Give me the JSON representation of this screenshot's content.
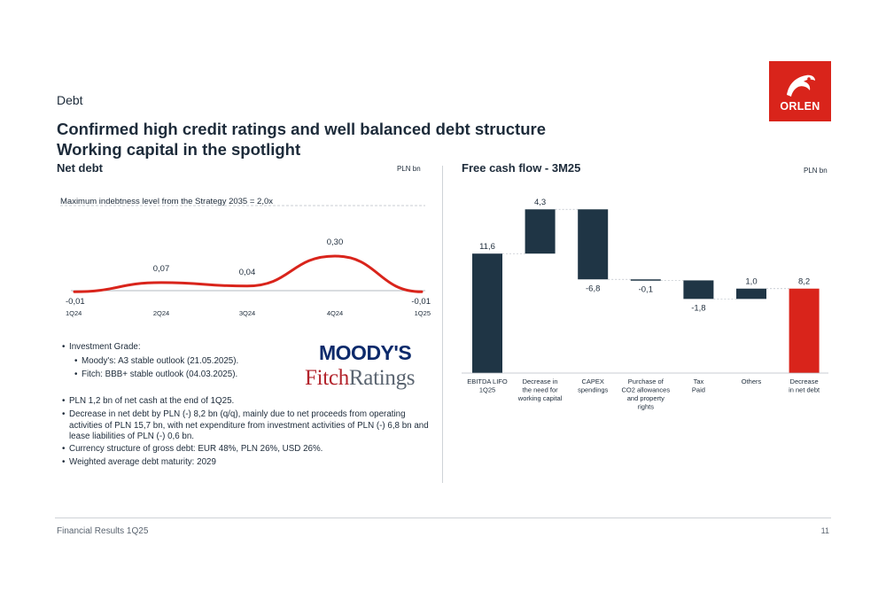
{
  "section": "Debt",
  "title_line1": "Confirmed high credit ratings and well balanced debt structure",
  "title_line2": "Working capital in the spotlight",
  "logo_text": "ORLEN",
  "left_panel": {
    "title": "Net debt",
    "unit": "PLN bn"
  },
  "right_panel": {
    "title": "Free cash flow - 3M25",
    "unit": "PLN bn"
  },
  "colors": {
    "navy": "#1f3545",
    "red": "#d9241b",
    "brand": "#d9241b"
  },
  "chart_data": [
    {
      "type": "line",
      "annotation": "Maximum indebtness level from the Strategy 2035 = 2,0x",
      "categories": [
        "1Q24",
        "2Q24",
        "3Q24",
        "4Q24",
        "1Q25"
      ],
      "values": [
        -0.01,
        0.07,
        0.04,
        0.3,
        -0.01
      ],
      "value_labels": [
        "-0,01",
        "0,07",
        "0,04",
        "0,30",
        "-0,01"
      ],
      "series_color": "#d9241b"
    },
    {
      "type": "bar",
      "subtype": "waterfall",
      "categories": [
        [
          "EBITDA LIFO",
          "1Q25"
        ],
        [
          "Decrease in",
          "the need for",
          "working capital"
        ],
        [
          "CAPEX",
          "spendings"
        ],
        [
          "Purchase of",
          "CO2 allowances",
          "and property",
          "rights"
        ],
        [
          "Tax",
          "Paid"
        ],
        [
          "Others"
        ],
        [
          "Decrease",
          "in net debt"
        ]
      ],
      "values": [
        11.6,
        4.3,
        -6.8,
        -0.1,
        -1.8,
        1.0,
        8.2
      ],
      "value_labels": [
        "11,6",
        "4,3",
        "-6,8",
        "-0,1",
        "-1,8",
        "1,0",
        "8,2"
      ],
      "bar_kinds": [
        "total",
        "delta",
        "delta",
        "delta",
        "delta",
        "delta",
        "total"
      ],
      "colors": [
        "#1f3545",
        "#1f3545",
        "#1f3545",
        "#1f3545",
        "#1f3545",
        "#1f3545",
        "#d9241b"
      ]
    }
  ],
  "ratings": {
    "investment_grade": "Investment Grade:",
    "moodys_line": "Moody's: A3 stable outlook (21.05.2025).",
    "fitch_line": "Fitch: BBB+ stable outlook (04.03.2025).",
    "moodys_logo": "MOODY'S",
    "fitch_logo_a": "Fitch",
    "fitch_logo_b": "Ratings"
  },
  "bullets": [
    "PLN 1,2 bn of net cash at the end of 1Q25.",
    "Decrease in net debt by PLN (-) 8,2 bn (q/q), mainly due to net proceeds from operating activities of PLN 15,7 bn, with net expenditure from investment activities of PLN (-) 6,8 bn and lease liabilities of PLN (-) 0,6 bn.",
    "Currency structure of gross debt: EUR 48%, PLN 26%, USD 26%.",
    "Weighted average debt maturity: 2029"
  ],
  "footer": {
    "left": "Financial Results 1Q25",
    "page": "11"
  }
}
